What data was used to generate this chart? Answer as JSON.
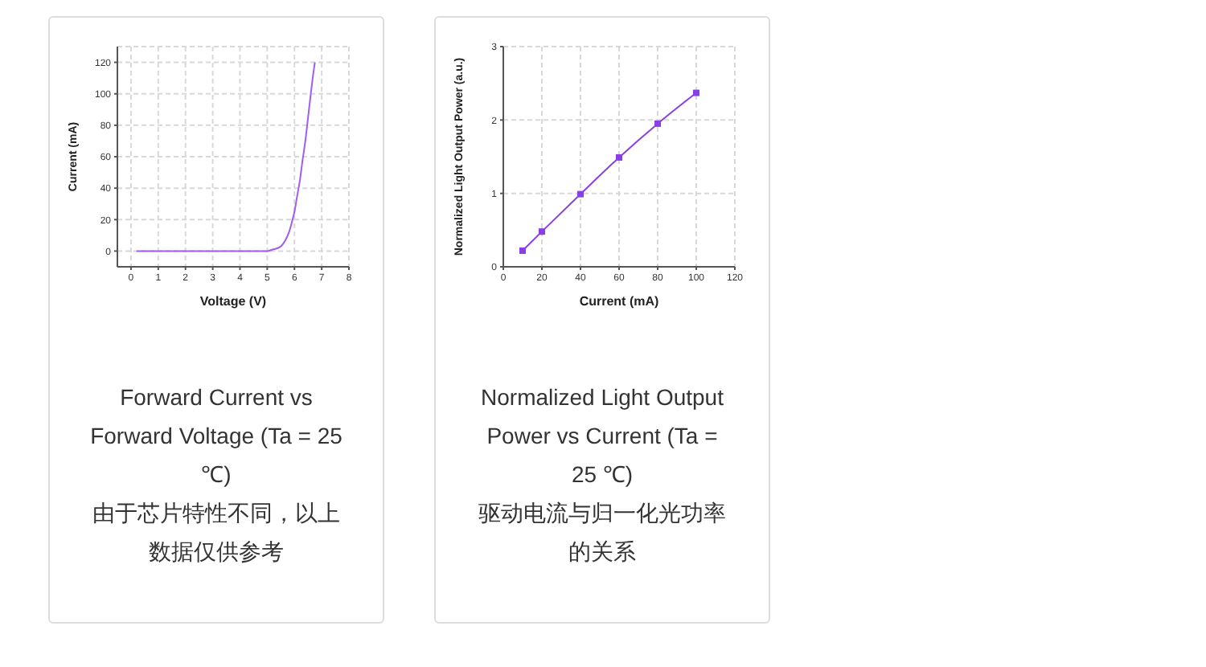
{
  "chart_data": [
    {
      "type": "line",
      "title": "Forward Current vs Forward Voltage (Ta = 25 ℃)",
      "annotations": [
        "由于芯片特性不同，以上数据仅供参考"
      ],
      "xlabel": "Voltage (V)",
      "ylabel": "Current (mA)",
      "xlim": [
        -0.5,
        8
      ],
      "ylim": [
        -10,
        130
      ],
      "xticks": [
        0,
        1,
        2,
        3,
        4,
        5,
        6,
        7,
        8
      ],
      "yticks": [
        0,
        20,
        40,
        60,
        80,
        100,
        120
      ],
      "grid": true,
      "marker": "none",
      "series": [
        {
          "color": "#a35cf2",
          "x": [
            0.2,
            1,
            2,
            3,
            4,
            5,
            5.2,
            5.4,
            5.5,
            5.6,
            5.7,
            5.8,
            5.9,
            6.0,
            6.1,
            6.2,
            6.3,
            6.4,
            6.5,
            6.6,
            6.7,
            6.75
          ],
          "values": [
            0,
            0,
            0,
            0,
            0,
            0,
            1,
            2,
            3,
            5,
            8,
            12,
            18,
            25,
            35,
            45,
            58,
            70,
            85,
            100,
            114,
            120
          ]
        }
      ]
    },
    {
      "type": "line",
      "title": "Normalized Light Output Power vs Current (Ta = 25 ℃)",
      "subtitle": "驱动电流与归一化光功率的关系",
      "xlabel": "Current (mA)",
      "ylabel": "Normalized Light Output Power (a.u.)",
      "xlim": [
        0,
        120
      ],
      "ylim": [
        0,
        3
      ],
      "xticks": [
        0,
        20,
        40,
        60,
        80,
        100,
        120
      ],
      "yticks": [
        0,
        1,
        2,
        3
      ],
      "grid": true,
      "marker": "square",
      "series": [
        {
          "color": "#8a3fe6",
          "x": [
            10,
            20,
            40,
            60,
            80,
            100
          ],
          "values": [
            0.22,
            0.48,
            0.99,
            1.49,
            1.95,
            2.37
          ]
        }
      ]
    }
  ]
}
